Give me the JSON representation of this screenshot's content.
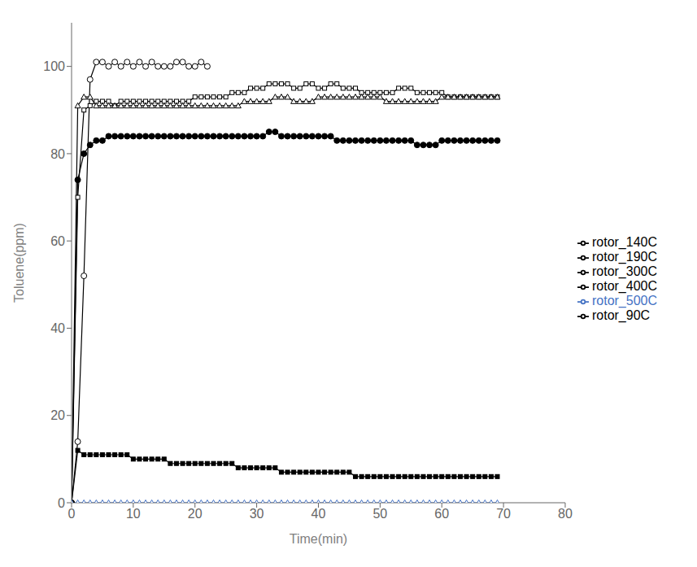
{
  "chart_data": {
    "type": "line",
    "xlabel": "Time(min)",
    "ylabel": "Toluene(ppm)",
    "xlim": [
      0,
      80
    ],
    "ylim": [
      0,
      110
    ],
    "xticks": [
      0,
      10,
      20,
      30,
      40,
      50,
      60,
      70,
      80
    ],
    "yticks": [
      0,
      20,
      40,
      60,
      80,
      100
    ],
    "grid": false,
    "legend": "right",
    "series": [
      {
        "name": "rotor_90C",
        "color": "black",
        "marker": "circle-open",
        "x": [
          0,
          1,
          2,
          3,
          4,
          5,
          6,
          7,
          8,
          9,
          10,
          11,
          12,
          13,
          14,
          15,
          16,
          17,
          18,
          19,
          20,
          21,
          22
        ],
        "values": [
          0,
          14,
          52,
          97,
          101,
          101,
          100,
          101,
          100,
          101,
          100,
          101,
          100,
          101,
          100,
          100,
          100,
          101,
          101,
          100,
          100,
          101,
          100
        ]
      },
      {
        "name": "rotor_140C",
        "color": "black",
        "marker": "square-open",
        "x": [
          0,
          1,
          2,
          3,
          4,
          5,
          6,
          7,
          8,
          9,
          10,
          11,
          12,
          13,
          14,
          15,
          16,
          17,
          18,
          19,
          20,
          21,
          22,
          23,
          24,
          25,
          26,
          27,
          28,
          29,
          30,
          31,
          32,
          33,
          34,
          35,
          36,
          37,
          38,
          39,
          40,
          41,
          42,
          43,
          44,
          45,
          46,
          47,
          48,
          49,
          50,
          51,
          52,
          53,
          54,
          55,
          56,
          57,
          58,
          59,
          60,
          61,
          62,
          63,
          64,
          65,
          66,
          67,
          68,
          69
        ],
        "values": [
          0,
          70,
          90,
          91,
          92,
          92,
          92,
          91,
          92,
          92,
          92,
          92,
          92,
          92,
          92,
          92,
          92,
          92,
          92,
          92,
          93,
          93,
          93,
          93,
          93,
          93,
          94,
          94,
          94,
          95,
          95,
          95,
          96,
          96,
          96,
          96,
          95,
          95,
          96,
          96,
          95,
          95,
          96,
          96,
          95,
          95,
          95,
          94,
          94,
          94,
          94,
          94,
          94,
          95,
          95,
          95,
          94,
          94,
          94,
          94,
          94,
          93,
          93,
          93,
          93,
          93,
          93,
          93,
          93,
          93
        ]
      },
      {
        "name": "rotor_190C",
        "color": "black",
        "marker": "triangle-open",
        "x": [
          0,
          1,
          2,
          3,
          4,
          5,
          6,
          7,
          8,
          9,
          10,
          11,
          12,
          13,
          14,
          15,
          16,
          17,
          18,
          19,
          20,
          21,
          22,
          23,
          24,
          25,
          26,
          27,
          28,
          29,
          30,
          31,
          32,
          33,
          34,
          35,
          36,
          37,
          38,
          39,
          40,
          41,
          42,
          43,
          44,
          45,
          46,
          47,
          48,
          49,
          50,
          51,
          52,
          53,
          54,
          55,
          56,
          57,
          58,
          59,
          60,
          61,
          62,
          63,
          64,
          65,
          66,
          67,
          68,
          69
        ],
        "values": [
          0,
          91,
          93,
          93,
          91,
          91,
          91,
          91,
          91,
          91,
          91,
          91,
          91,
          91,
          91,
          91,
          91,
          91,
          91,
          91,
          91,
          91,
          91,
          91,
          91,
          91,
          91,
          91,
          92,
          92,
          92,
          92,
          92,
          93,
          93,
          93,
          92,
          92,
          92,
          92,
          93,
          93,
          93,
          93,
          93,
          93,
          93,
          93,
          93,
          93,
          93,
          92,
          92,
          92,
          92,
          92,
          92,
          92,
          92,
          92,
          93,
          93,
          93,
          93,
          93,
          93,
          93,
          93,
          93,
          93
        ]
      },
      {
        "name": "rotor_300C",
        "color": "black",
        "marker": "circle",
        "x": [
          0,
          1,
          2,
          3,
          4,
          5,
          6,
          7,
          8,
          9,
          10,
          11,
          12,
          13,
          14,
          15,
          16,
          17,
          18,
          19,
          20,
          21,
          22,
          23,
          24,
          25,
          26,
          27,
          28,
          29,
          30,
          31,
          32,
          33,
          34,
          35,
          36,
          37,
          38,
          39,
          40,
          41,
          42,
          43,
          44,
          45,
          46,
          47,
          48,
          49,
          50,
          51,
          52,
          53,
          54,
          55,
          56,
          57,
          58,
          59,
          60,
          61,
          62,
          63,
          64,
          65,
          66,
          67,
          68,
          69
        ],
        "values": [
          0,
          74,
          80,
          82,
          83,
          83,
          84,
          84,
          84,
          84,
          84,
          84,
          84,
          84,
          84,
          84,
          84,
          84,
          84,
          84,
          84,
          84,
          84,
          84,
          84,
          84,
          84,
          84,
          84,
          84,
          84,
          84,
          85,
          85,
          84,
          84,
          84,
          84,
          84,
          84,
          84,
          84,
          84,
          83,
          83,
          83,
          83,
          83,
          83,
          83,
          83,
          83,
          83,
          83,
          83,
          83,
          82,
          82,
          82,
          82,
          83,
          83,
          83,
          83,
          83,
          83,
          83,
          83,
          83,
          83
        ]
      },
      {
        "name": "rotor_400C",
        "color": "black",
        "marker": "square",
        "x": [
          0,
          1,
          2,
          3,
          4,
          5,
          6,
          7,
          8,
          9,
          10,
          11,
          12,
          13,
          14,
          15,
          16,
          17,
          18,
          19,
          20,
          21,
          22,
          23,
          24,
          25,
          26,
          27,
          28,
          29,
          30,
          31,
          32,
          33,
          34,
          35,
          36,
          37,
          38,
          39,
          40,
          41,
          42,
          43,
          44,
          45,
          46,
          47,
          48,
          49,
          50,
          51,
          52,
          53,
          54,
          55,
          56,
          57,
          58,
          59,
          60,
          61,
          62,
          63,
          64,
          65,
          66,
          67,
          68,
          69
        ],
        "values": [
          0,
          12,
          11,
          11,
          11,
          11,
          11,
          11,
          11,
          11,
          10,
          10,
          10,
          10,
          10,
          10,
          9,
          9,
          9,
          9,
          9,
          9,
          9,
          9,
          9,
          9,
          9,
          8,
          8,
          8,
          8,
          8,
          8,
          8,
          7,
          7,
          7,
          7,
          7,
          7,
          7,
          7,
          7,
          7,
          7,
          7,
          6,
          6,
          6,
          6,
          6,
          6,
          6,
          6,
          6,
          6,
          6,
          6,
          6,
          6,
          6,
          6,
          6,
          6,
          6,
          6,
          6,
          6,
          6,
          6
        ]
      },
      {
        "name": "rotor_500C",
        "color": "#4472c4",
        "marker": "triangle-open",
        "x": [
          0,
          1,
          2,
          3,
          4,
          5,
          6,
          7,
          8,
          9,
          10,
          11,
          12,
          13,
          14,
          15,
          16,
          17,
          18,
          19,
          20,
          21,
          22,
          23,
          24,
          25,
          26,
          27,
          28,
          29,
          30,
          31,
          32,
          33,
          34,
          35,
          36,
          37,
          38,
          39,
          40,
          41,
          42,
          43,
          44,
          45,
          46,
          47,
          48,
          49,
          50,
          51,
          52,
          53,
          54,
          55,
          56,
          57,
          58,
          59,
          60,
          61,
          62,
          63,
          64,
          65,
          66,
          67,
          68,
          69
        ],
        "values": [
          0,
          0,
          0,
          0,
          0,
          0,
          0,
          0,
          0,
          0,
          0,
          0,
          0,
          0,
          0,
          0,
          0,
          0,
          0,
          0,
          0,
          0,
          0,
          0,
          0,
          0,
          0,
          0,
          0,
          0,
          0,
          0,
          0,
          0,
          0,
          0,
          0,
          0,
          0,
          0,
          0,
          0,
          0,
          0,
          0,
          0,
          0,
          0,
          0,
          0,
          0,
          0,
          0,
          0,
          0,
          0,
          0,
          0,
          0,
          0,
          0,
          0,
          0,
          0,
          0,
          0,
          0,
          0,
          0,
          0
        ]
      }
    ]
  }
}
